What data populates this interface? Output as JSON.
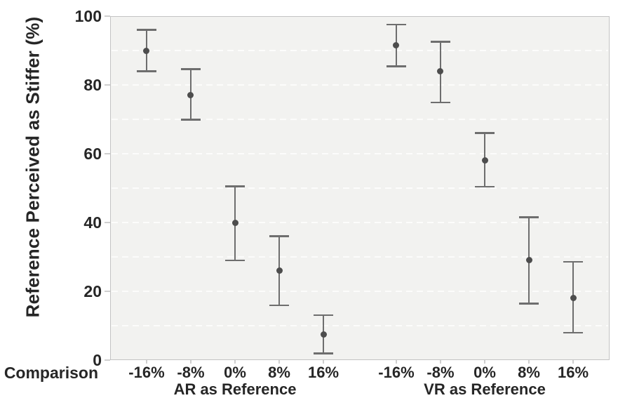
{
  "chart_data": {
    "type": "scatter",
    "subtype": "point-estimate-with-error-bars",
    "title": "",
    "ylabel": "Reference Perceived as Stiffer (%)",
    "x_row_label": "Comparison",
    "ylim": [
      0,
      100
    ],
    "yticks": [
      0,
      20,
      40,
      60,
      80,
      100
    ],
    "gridlines": "horizontal, dashed, every 10 units",
    "legend_position": "none",
    "categories": [
      "-16%",
      "-8%",
      "0%",
      "8%",
      "16%"
    ],
    "series": [
      {
        "name": "AR as Reference",
        "points": [
          {
            "category": "-16%",
            "mean": 90,
            "ci_low": 84,
            "ci_high": 96
          },
          {
            "category": "-8%",
            "mean": 77,
            "ci_low": 70,
            "ci_high": 84.5
          },
          {
            "category": "0%",
            "mean": 40,
            "ci_low": 29,
            "ci_high": 50.5
          },
          {
            "category": "8%",
            "mean": 26,
            "ci_low": 16,
            "ci_high": 36
          },
          {
            "category": "16%",
            "mean": 7.5,
            "ci_low": 2,
            "ci_high": 13
          }
        ]
      },
      {
        "name": "VR as Reference",
        "points": [
          {
            "category": "-16%",
            "mean": 91.5,
            "ci_low": 85.5,
            "ci_high": 97.5
          },
          {
            "category": "-8%",
            "mean": 84,
            "ci_low": 75,
            "ci_high": 92.5
          },
          {
            "category": "0%",
            "mean": 58,
            "ci_low": 50.5,
            "ci_high": 66
          },
          {
            "category": "8%",
            "mean": 29,
            "ci_low": 16.5,
            "ci_high": 41.5
          },
          {
            "category": "16%",
            "mean": 18,
            "ci_low": 8,
            "ci_high": 28.5
          }
        ]
      }
    ],
    "colors": {
      "marker": "#4d4d4d",
      "errorbar": "#6e6e6e",
      "plot_background": "#f2f2f0",
      "plot_border": "#c3c3c3",
      "gridline": "#fcfcfb",
      "tick_mark": "#cfcfcf",
      "text": "#262626",
      "page_background": "#ffffff"
    }
  }
}
